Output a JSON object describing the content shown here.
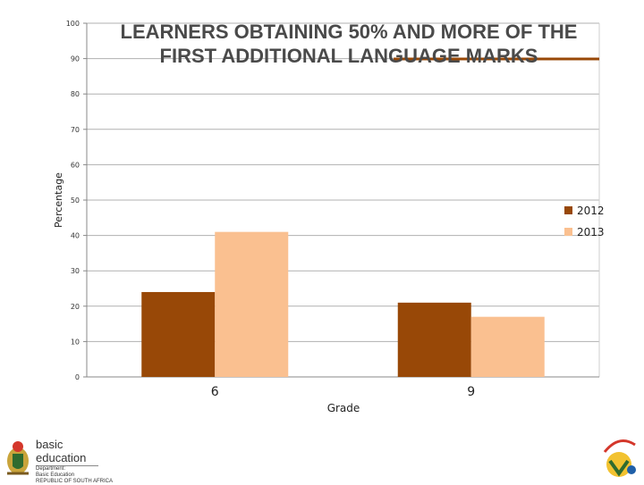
{
  "chart_data": {
    "type": "bar",
    "title": "LEARNERS OBTAINING 50% AND MORE OF THE FIRST ADDITIONAL LANGUAGE MARKS",
    "xlabel": "Grade",
    "ylabel": "Percentage",
    "categories": [
      "6",
      "9"
    ],
    "series": [
      {
        "name": "2012",
        "values": [
          24,
          21
        ],
        "color": "#984807"
      },
      {
        "name": "2013",
        "values": [
          41,
          17
        ],
        "color": "#FAC090"
      }
    ],
    "ylim": [
      0,
      100
    ],
    "yticks": [
      0,
      10,
      20,
      30,
      40,
      50,
      60,
      70,
      80,
      90,
      100
    ],
    "grid": true,
    "legend": "right"
  },
  "footer": {
    "department": "basic education",
    "department_lines": [
      "Department:",
      "Basic Education",
      "REPUBLIC OF SOUTH AFRICA"
    ]
  },
  "colors": {
    "title_underline": "#984807",
    "gridline": "#b0b0b0"
  }
}
